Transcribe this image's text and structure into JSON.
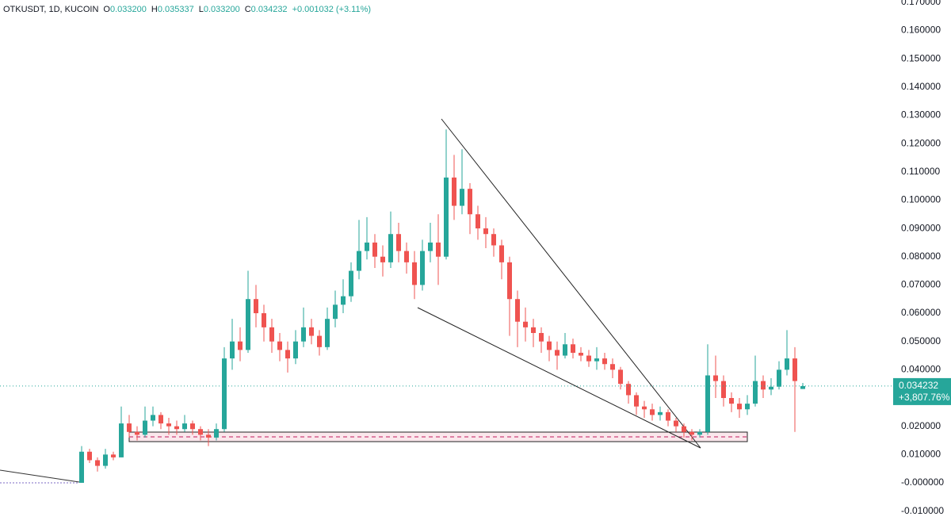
{
  "chart_data": {
    "type": "candlestick",
    "header": {
      "symbol": "OTKUSDT, 1D, KUCOIN",
      "fields": [
        {
          "key": "O",
          "text": "0.033200"
        },
        {
          "key": "H",
          "text": "0.035337"
        },
        {
          "key": "L",
          "text": "0.033200"
        },
        {
          "key": "C",
          "text": "0.034232"
        }
      ],
      "change": "+0.001032 (+3.11%)"
    },
    "up_color": "#26a69a",
    "down_color": "#ef5350",
    "open": [
      0.0,
      0.011,
      0.008,
      0.006,
      0.01,
      0.009,
      0.021,
      0.018,
      0.017,
      0.022,
      0.024,
      0.021,
      0.02,
      0.019,
      0.021,
      0.019,
      0.017,
      0.016,
      0.019,
      0.044,
      0.05,
      0.047,
      0.065,
      0.06,
      0.055,
      0.05,
      0.047,
      0.044,
      0.05,
      0.055,
      0.052,
      0.048,
      0.058,
      0.063,
      0.066,
      0.075,
      0.082,
      0.085,
      0.08,
      0.078,
      0.088,
      0.082,
      0.078,
      0.07,
      0.082,
      0.085,
      0.08,
      0.108,
      0.098,
      0.104,
      0.095,
      0.09,
      0.088,
      0.084,
      0.078,
      0.065,
      0.057,
      0.055,
      0.053,
      0.05,
      0.047,
      0.045,
      0.049,
      0.046,
      0.045,
      0.043,
      0.044,
      0.042,
      0.04,
      0.035,
      0.031,
      0.027,
      0.026,
      0.024,
      0.025,
      0.022,
      0.02,
      0.018,
      0.017,
      0.018,
      0.038,
      0.036,
      0.03,
      0.028,
      0.026,
      0.028,
      0.036,
      0.033,
      0.034,
      0.04,
      0.044,
      0.0332
    ],
    "high": [
      0.013,
      0.012,
      0.009,
      0.012,
      0.011,
      0.027,
      0.024,
      0.02,
      0.027,
      0.027,
      0.025,
      0.023,
      0.022,
      0.024,
      0.022,
      0.02,
      0.019,
      0.021,
      0.048,
      0.058,
      0.055,
      0.075,
      0.07,
      0.063,
      0.058,
      0.053,
      0.05,
      0.054,
      0.062,
      0.058,
      0.054,
      0.062,
      0.068,
      0.072,
      0.078,
      0.093,
      0.094,
      0.088,
      0.084,
      0.096,
      0.092,
      0.085,
      0.082,
      0.086,
      0.092,
      0.095,
      0.125,
      0.116,
      0.118,
      0.106,
      0.098,
      0.094,
      0.09,
      0.086,
      0.08,
      0.068,
      0.062,
      0.058,
      0.055,
      0.052,
      0.05,
      0.053,
      0.051,
      0.048,
      0.047,
      0.048,
      0.046,
      0.044,
      0.041,
      0.036,
      0.032,
      0.029,
      0.028,
      0.027,
      0.026,
      0.023,
      0.021,
      0.019,
      0.019,
      0.049,
      0.045,
      0.038,
      0.032,
      0.03,
      0.031,
      0.045,
      0.038,
      0.037,
      0.043,
      0.054,
      0.048,
      0.035337
    ],
    "low": [
      0.0,
      0.007,
      0.004,
      0.005,
      0.008,
      0.009,
      0.016,
      0.015,
      0.016,
      0.02,
      0.019,
      0.017,
      0.017,
      0.018,
      0.017,
      0.015,
      0.013,
      0.015,
      0.018,
      0.04,
      0.043,
      0.046,
      0.055,
      0.05,
      0.046,
      0.043,
      0.039,
      0.042,
      0.048,
      0.049,
      0.045,
      0.047,
      0.055,
      0.06,
      0.064,
      0.072,
      0.079,
      0.076,
      0.073,
      0.076,
      0.078,
      0.074,
      0.065,
      0.068,
      0.078,
      0.07,
      0.079,
      0.093,
      0.095,
      0.088,
      0.086,
      0.083,
      0.08,
      0.072,
      0.052,
      0.048,
      0.05,
      0.048,
      0.046,
      0.043,
      0.04,
      0.044,
      0.044,
      0.043,
      0.041,
      0.04,
      0.04,
      0.037,
      0.033,
      0.028,
      0.024,
      0.023,
      0.022,
      0.022,
      0.02,
      0.018,
      0.016,
      0.015,
      0.016,
      0.017,
      0.03,
      0.027,
      0.025,
      0.023,
      0.024,
      0.027,
      0.03,
      0.031,
      0.033,
      0.038,
      0.018,
      0.0332
    ],
    "close": [
      0.011,
      0.008,
      0.006,
      0.01,
      0.009,
      0.021,
      0.018,
      0.017,
      0.022,
      0.024,
      0.021,
      0.02,
      0.019,
      0.021,
      0.019,
      0.017,
      0.016,
      0.019,
      0.044,
      0.05,
      0.047,
      0.065,
      0.06,
      0.055,
      0.05,
      0.047,
      0.044,
      0.05,
      0.055,
      0.052,
      0.048,
      0.058,
      0.063,
      0.066,
      0.075,
      0.082,
      0.085,
      0.08,
      0.078,
      0.088,
      0.082,
      0.078,
      0.07,
      0.082,
      0.085,
      0.08,
      0.108,
      0.098,
      0.104,
      0.095,
      0.09,
      0.088,
      0.084,
      0.078,
      0.065,
      0.057,
      0.055,
      0.053,
      0.05,
      0.047,
      0.045,
      0.049,
      0.046,
      0.045,
      0.043,
      0.044,
      0.042,
      0.04,
      0.035,
      0.031,
      0.027,
      0.026,
      0.024,
      0.025,
      0.022,
      0.02,
      0.018,
      0.017,
      0.018,
      0.038,
      0.036,
      0.03,
      0.028,
      0.026,
      0.028,
      0.036,
      0.033,
      0.034,
      0.04,
      0.044,
      0.036,
      0.034232
    ],
    "change_label": "+3,807.76%",
    "ylim": [
      -0.0174,
      0.1708
    ],
    "yticks": [
      {
        "value": 0.17,
        "label": "0.170000"
      },
      {
        "value": 0.16,
        "label": "0.160000"
      },
      {
        "value": 0.15,
        "label": "0.150000"
      },
      {
        "value": 0.14,
        "label": "0.140000"
      },
      {
        "value": 0.13,
        "label": "0.130000"
      },
      {
        "value": 0.12,
        "label": "0.120000"
      },
      {
        "value": 0.11,
        "label": "0.110000"
      },
      {
        "value": 0.1,
        "label": "0.100000"
      },
      {
        "value": 0.09,
        "label": "0.090000"
      },
      {
        "value": 0.08,
        "label": "0.080000"
      },
      {
        "value": 0.07,
        "label": "0.070000"
      },
      {
        "value": 0.06,
        "label": "0.060000"
      },
      {
        "value": 0.05,
        "label": "0.050000"
      },
      {
        "value": 0.04,
        "label": "0.040000"
      },
      {
        "value": 0.03,
        "label": "0.030000"
      },
      {
        "value": 0.02,
        "label": "0.020000"
      },
      {
        "value": 0.01,
        "label": "0.010000"
      },
      {
        "value": 0,
        "label": "-0.000000"
      },
      {
        "value": -0.01,
        "label": "-0.010000"
      }
    ]
  }
}
